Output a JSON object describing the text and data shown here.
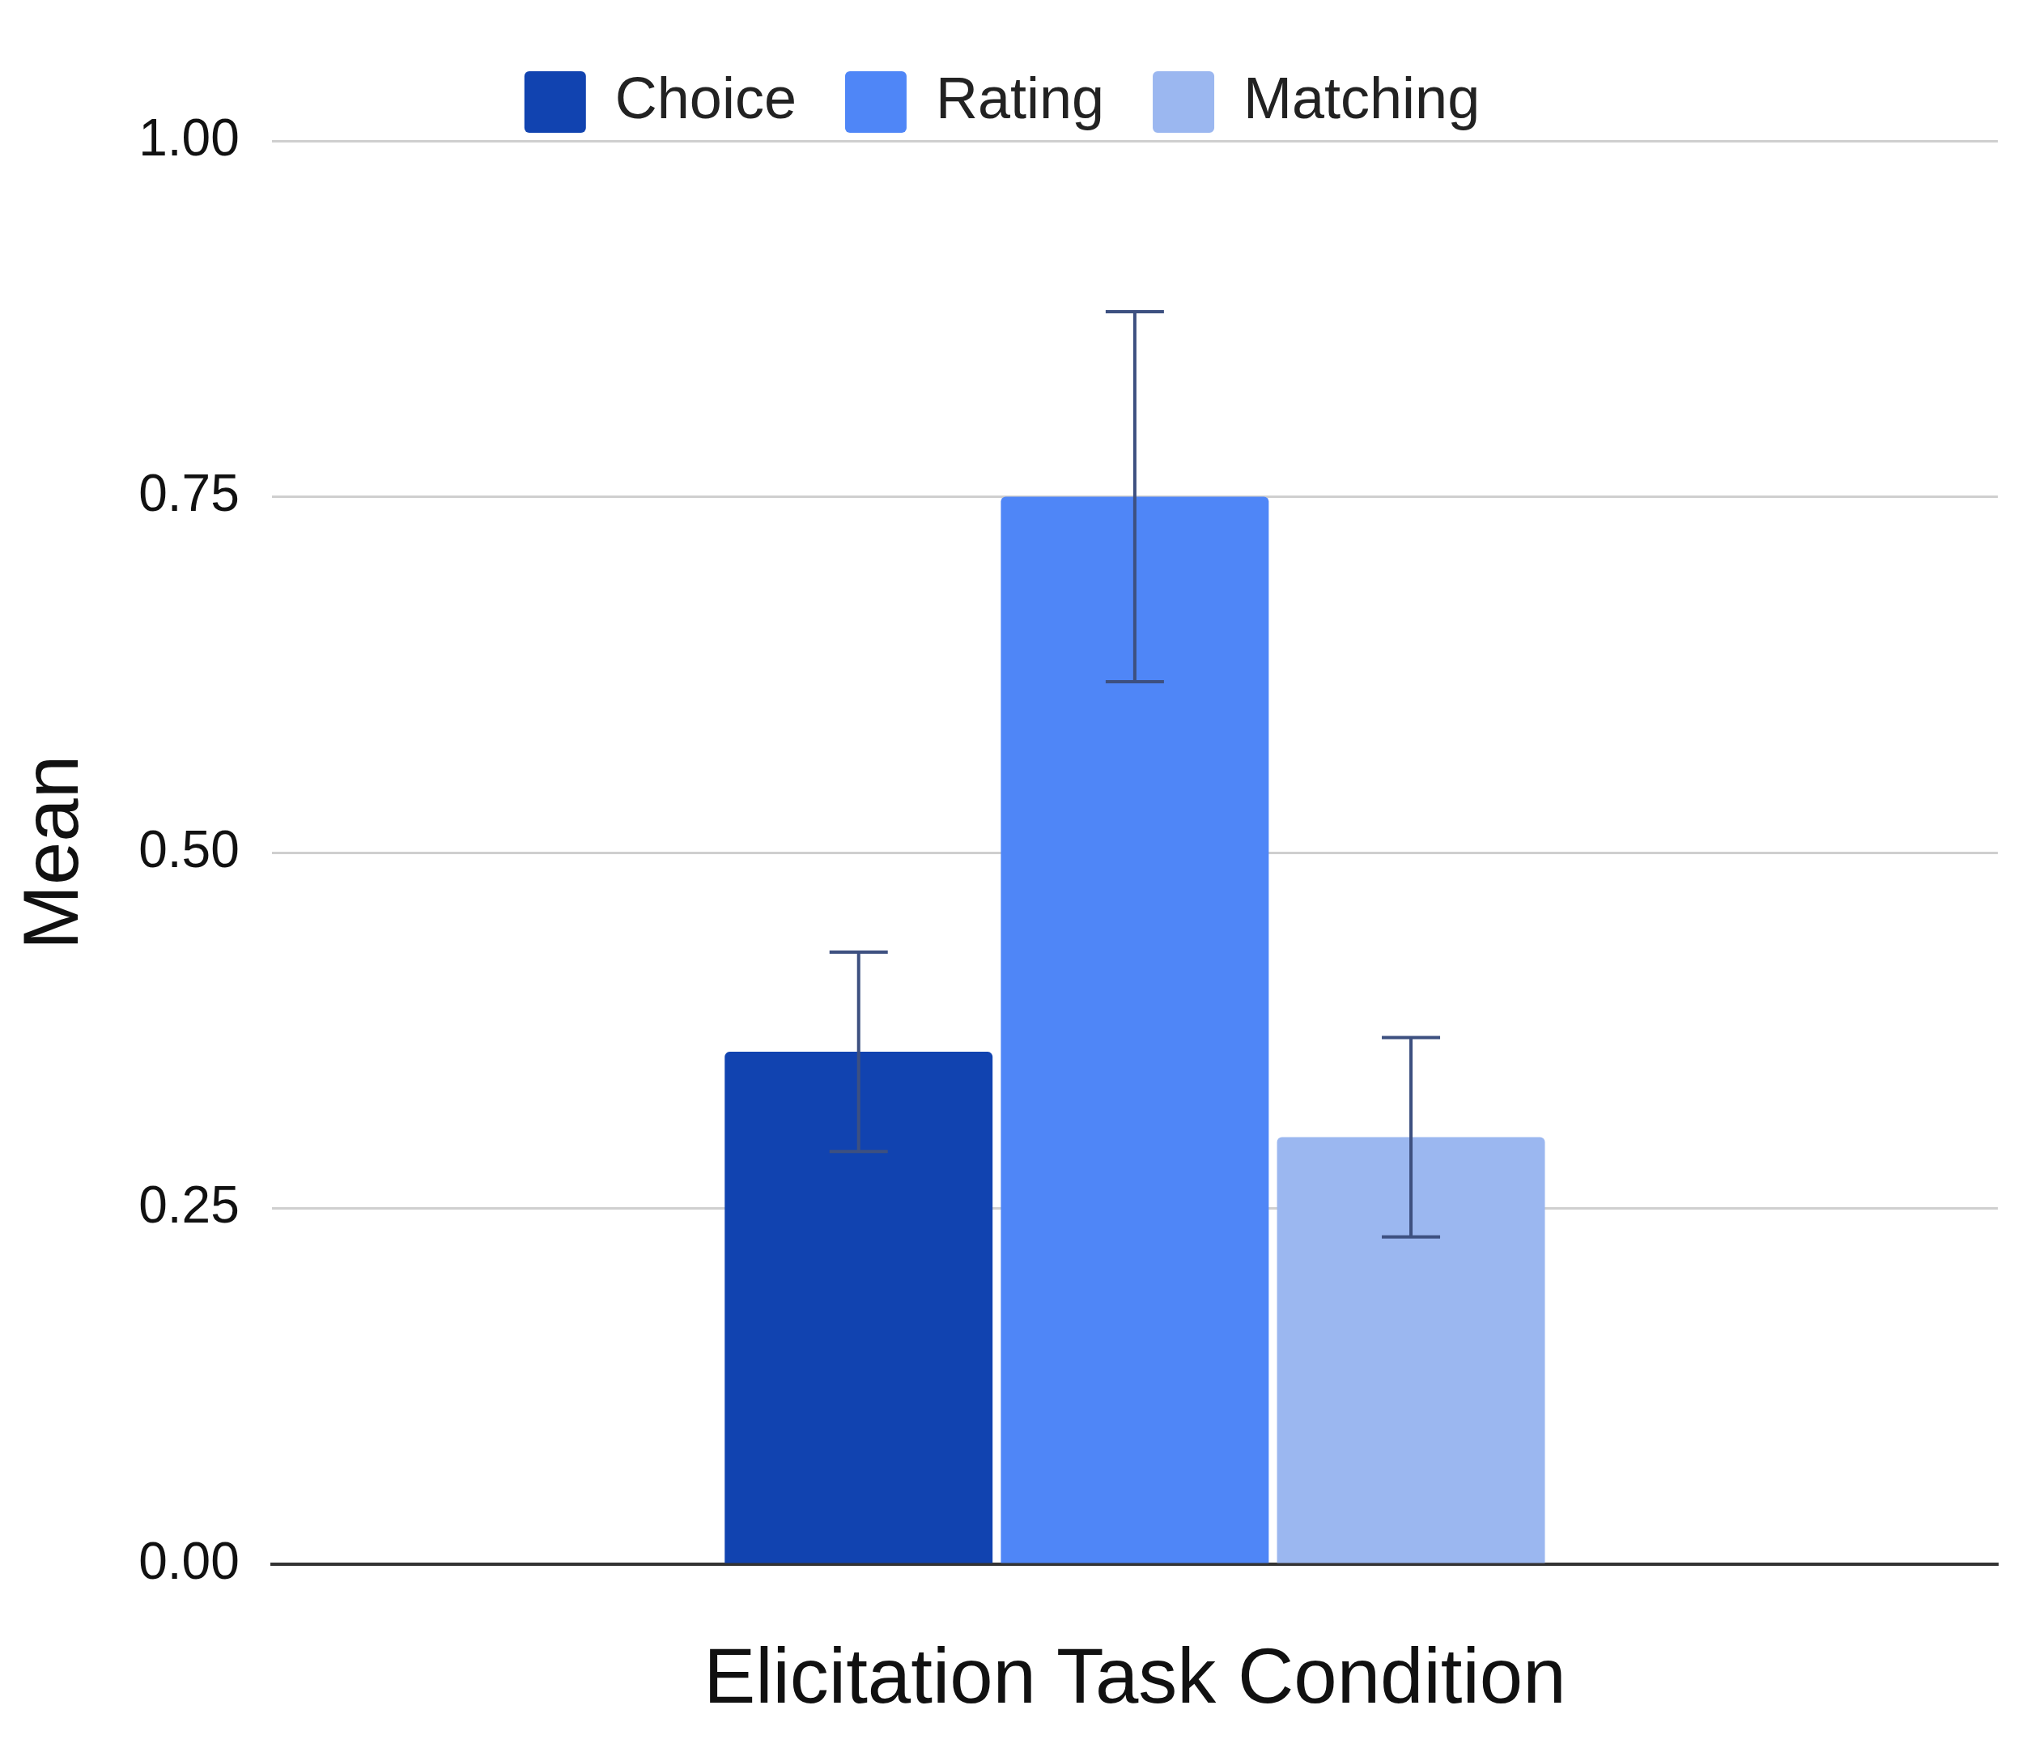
{
  "chart_data": {
    "type": "bar",
    "xlabel": "Elicitation Task Condition",
    "ylabel": "Mean",
    "categories": [
      null
    ],
    "series": [
      {
        "name": "Choice",
        "color": "#1143b0",
        "values": [
          0.36
        ],
        "errors": [
          [
            0.29,
            0.43
          ]
        ]
      },
      {
        "name": "Rating",
        "color": "#4f86f7",
        "values": [
          0.75
        ],
        "errors": [
          [
            0.62,
            0.88
          ]
        ]
      },
      {
        "name": "Matching",
        "color": "#9bb7f0",
        "values": [
          0.3
        ],
        "errors": [
          [
            0.23,
            0.37
          ]
        ]
      }
    ],
    "ylim": [
      0,
      1
    ],
    "yticks": [
      {
        "value": 0,
        "label": "0.00"
      },
      {
        "value": 0.25,
        "label": "0.25"
      },
      {
        "value": 0.5,
        "label": "0.50"
      },
      {
        "value": 0.75,
        "label": "0.75"
      },
      {
        "value": 1,
        "label": "1.00"
      }
    ],
    "grid": "y",
    "legend": "top"
  }
}
